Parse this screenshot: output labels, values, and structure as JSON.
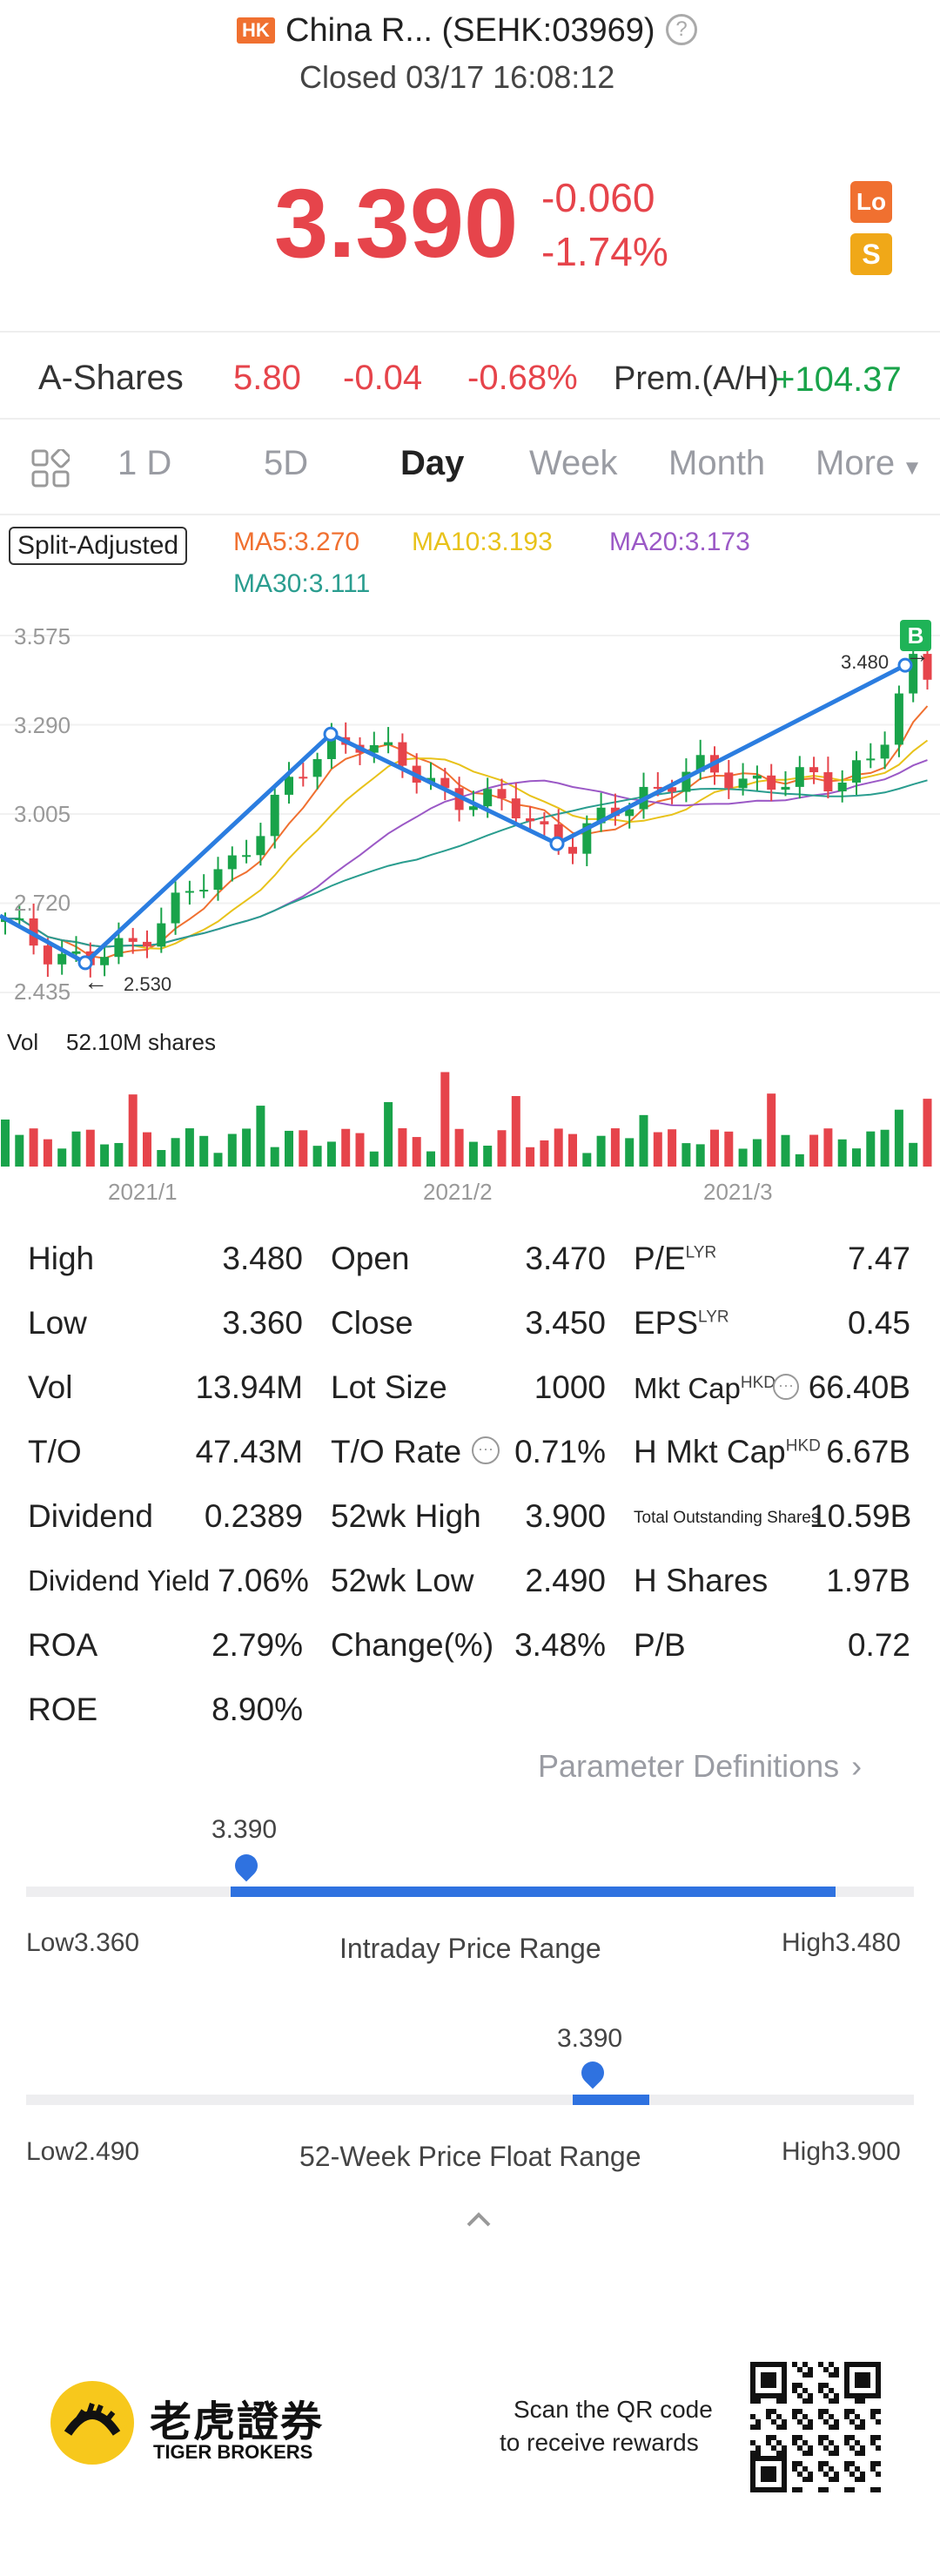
{
  "header": {
    "market_badge": "HK",
    "title": "China R... (SEHK:03969)",
    "status": "Closed 03/17 16:08:12"
  },
  "quote": {
    "price": "3.390",
    "change": "-0.060",
    "change_pct": "-1.74%",
    "badge_lo": "Lo",
    "badge_s": "S"
  },
  "a_shares": {
    "label": "A-Shares",
    "price": "5.80",
    "change": "-0.04",
    "change_pct": "-0.68%",
    "premium_label": "Prem.(A/H)",
    "premium_value": "+104.37"
  },
  "tabs": {
    "t1": "1 D",
    "t2": "5D",
    "t3": "Day",
    "t4": "Week",
    "t5": "Month",
    "t6": "More"
  },
  "indicators": {
    "split": "Split-Adjusted",
    "ma5": "MA5:3.270",
    "ma10": "MA10:3.193",
    "ma20": "MA20:3.173",
    "ma30": "MA30:3.111",
    "ma5_color": "#f07030",
    "ma10_color": "#e8c21a",
    "ma20_color": "#9b59c6",
    "ma30_color": "#2a9d8f"
  },
  "chart_data": {
    "type": "candlestick",
    "y_ticks": [
      "3.575",
      "3.290",
      "3.005",
      "2.720",
      "2.435"
    ],
    "ylim": [
      2.435,
      3.575
    ],
    "x_ticks": [
      "2021/1",
      "2021/2",
      "2021/3"
    ],
    "marker_high": "3.480",
    "marker_low": "2.530",
    "badge_b": "B",
    "volume_label": "Vol",
    "volume_value": "52.10M shares",
    "colors": {
      "up": "#19a34a",
      "down": "#e6444b",
      "trend": "#2b7de0"
    }
  },
  "stats": {
    "high_label": "High",
    "high": "3.480",
    "open_label": "Open",
    "open": "3.470",
    "pe_label": "P/E",
    "pe_sup": "LYR",
    "pe": "7.47",
    "low_label": "Low",
    "low": "3.360",
    "close_label": "Close",
    "close": "3.450",
    "eps_label": "EPS",
    "eps_sup": "LYR",
    "eps": "0.45",
    "vol_label": "Vol",
    "vol": "13.94M",
    "lot_label": "Lot Size",
    "lot": "1000",
    "mktcap_label": "Mkt Cap",
    "mktcap_sup": "HKD",
    "mktcap": "66.40B",
    "to_label": "T/O",
    "to": "47.43M",
    "torate_label": "T/O Rate",
    "torate": "0.71%",
    "hmktcap_label": "H Mkt Cap",
    "hmktcap_sup": "HKD",
    "hmktcap": "6.67B",
    "div_label": "Dividend",
    "div": "0.2389",
    "wkhigh_label": "52wk High",
    "wkhigh": "3.900",
    "tos_label": "Total Outstanding Shares",
    "tos": "10.59B",
    "dy_label": "Dividend Yield",
    "dy": "7.06%",
    "wklow_label": "52wk Low",
    "wklow": "2.490",
    "hshares_label": "H Shares",
    "hshares": "1.97B",
    "roa_label": "ROA",
    "roa": "2.79%",
    "chgpct_label": "Change(%)",
    "chgpct": "3.48%",
    "pb_label": "P/B",
    "pb": "0.72",
    "roe_label": "ROE",
    "roe": "8.90%"
  },
  "param_link": "Parameter Definitions",
  "intraday": {
    "current": "3.390",
    "low_label": "Low",
    "low": "3.360",
    "title": "Intraday Price Range",
    "high_label": "High",
    "high": "3.480",
    "position": 0.25
  },
  "week52": {
    "current": "3.390",
    "low_label": "Low",
    "low": "2.490",
    "title": "52-Week Price Float Range",
    "high_label": "High",
    "high": "3.900",
    "position": 0.64
  },
  "footer": {
    "brand_cn": "老虎證券",
    "brand_en": "TIGER BROKERS",
    "scan_line1": "Scan the QR code",
    "scan_line2": "to receive rewards"
  }
}
